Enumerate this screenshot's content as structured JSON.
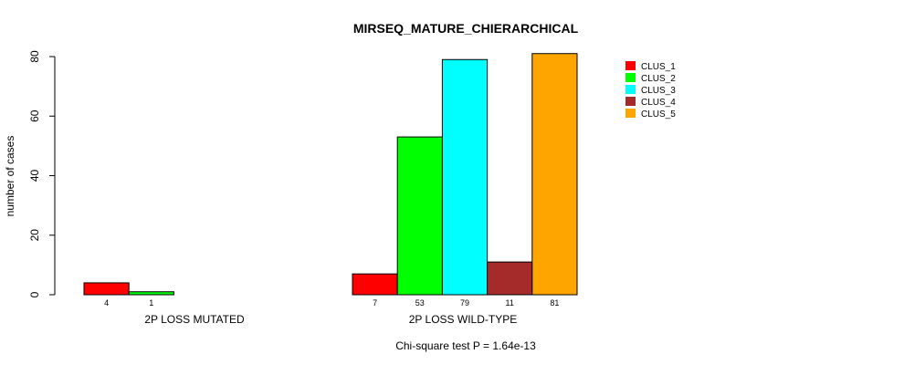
{
  "chart_data": {
    "type": "bar",
    "title": "MIRSEQ_MATURE_CHIERARCHICAL",
    "ylabel": "number of cases",
    "subtitle": "Chi-square test P = 1.64e-13",
    "ylim": [
      0,
      80
    ],
    "yticks": [
      0,
      20,
      40,
      60,
      80
    ],
    "groups": [
      "2P LOSS MUTATED",
      "2P LOSS WILD-TYPE"
    ],
    "legend_position": "top-right",
    "grid": false,
    "series": [
      {
        "name": "CLUS_1",
        "color": "#ff0000",
        "values": [
          4,
          7
        ]
      },
      {
        "name": "CLUS_2",
        "color": "#00ff00",
        "values": [
          1,
          53
        ]
      },
      {
        "name": "CLUS_3",
        "color": "#00ffff",
        "values": [
          0,
          79
        ]
      },
      {
        "name": "CLUS_4",
        "color": "#a52a2a",
        "values": [
          0,
          11
        ]
      },
      {
        "name": "CLUS_5",
        "color": "#ffa500",
        "values": [
          0,
          81
        ]
      }
    ],
    "count_labels": [
      [
        "4",
        "1",
        "",
        "",
        ""
      ],
      [
        "7",
        "53",
        "79",
        "11",
        "81"
      ]
    ]
  }
}
